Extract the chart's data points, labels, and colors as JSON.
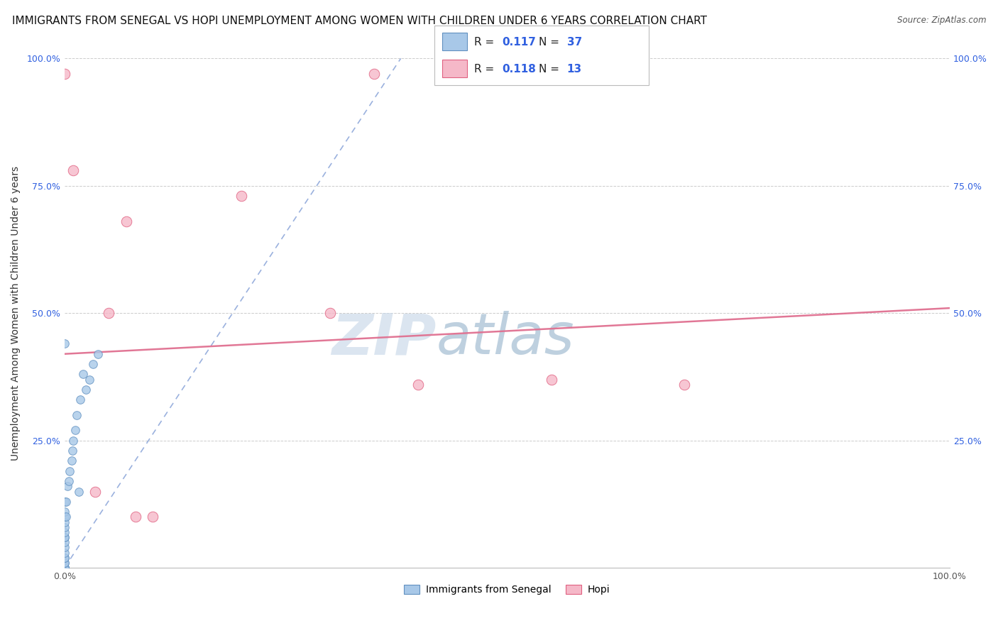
{
  "title": "IMMIGRANTS FROM SENEGAL VS HOPI UNEMPLOYMENT AMONG WOMEN WITH CHILDREN UNDER 6 YEARS CORRELATION CHART",
  "source": "Source: ZipAtlas.com",
  "ylabel": "Unemployment Among Women with Children Under 6 years",
  "xlim": [
    0.0,
    1.0
  ],
  "ylim": [
    0.0,
    1.0
  ],
  "xtick_positions": [
    0.0,
    0.25,
    0.5,
    0.75,
    1.0
  ],
  "xtick_labels": [
    "0.0%",
    "",
    "",
    "",
    "100.0%"
  ],
  "ytick_positions": [
    0.0,
    0.25,
    0.5,
    0.75,
    1.0
  ],
  "ytick_labels": [
    "",
    "25.0%",
    "50.0%",
    "75.0%",
    "100.0%"
  ],
  "blue_scatter_x": [
    0.0,
    0.0,
    0.0,
    0.0,
    0.0,
    0.0,
    0.0,
    0.0,
    0.0,
    0.0,
    0.0,
    0.0,
    0.0,
    0.0,
    0.0,
    0.0,
    0.0,
    0.0,
    0.0,
    0.0,
    0.002,
    0.002,
    0.003,
    0.005,
    0.006,
    0.008,
    0.009,
    0.01,
    0.012,
    0.014,
    0.016,
    0.018,
    0.021,
    0.024,
    0.028,
    0.032,
    0.038
  ],
  "blue_scatter_y": [
    0.0,
    0.0,
    0.0,
    0.0,
    0.01,
    0.01,
    0.02,
    0.02,
    0.03,
    0.04,
    0.05,
    0.06,
    0.06,
    0.07,
    0.08,
    0.09,
    0.1,
    0.11,
    0.13,
    0.44,
    0.1,
    0.13,
    0.16,
    0.17,
    0.19,
    0.21,
    0.23,
    0.25,
    0.27,
    0.3,
    0.15,
    0.33,
    0.38,
    0.35,
    0.37,
    0.4,
    0.42
  ],
  "pink_scatter_x": [
    0.0,
    0.01,
    0.035,
    0.05,
    0.07,
    0.08,
    0.1,
    0.2,
    0.35,
    0.4,
    0.55,
    0.7,
    0.3
  ],
  "pink_scatter_y": [
    0.97,
    0.78,
    0.15,
    0.5,
    0.68,
    0.1,
    0.1,
    0.73,
    0.97,
    0.36,
    0.37,
    0.36,
    0.5
  ],
  "blue_line_x": [
    0.0,
    0.38
  ],
  "blue_line_y": [
    0.0,
    1.0
  ],
  "pink_line_x": [
    0.0,
    1.0
  ],
  "pink_line_y": [
    0.42,
    0.51
  ],
  "blue_color": "#a8c8e8",
  "pink_color": "#f5b8c8",
  "blue_edge_color": "#6090c0",
  "pink_edge_color": "#e06080",
  "blue_line_color": "#7090d0",
  "pink_line_color": "#e07090",
  "legend_blue_r": "0.117",
  "legend_blue_n": "37",
  "legend_pink_r": "0.118",
  "legend_pink_n": "13",
  "legend_label_blue": "Immigrants from Senegal",
  "legend_label_pink": "Hopi",
  "watermark_zip": "ZIP",
  "watermark_atlas": "atlas",
  "title_fontsize": 11,
  "label_fontsize": 10,
  "tick_fontsize": 9,
  "background_color": "#ffffff",
  "grid_color": "#cccccc",
  "r_n_color": "#3060e0",
  "text_color": "#333333"
}
